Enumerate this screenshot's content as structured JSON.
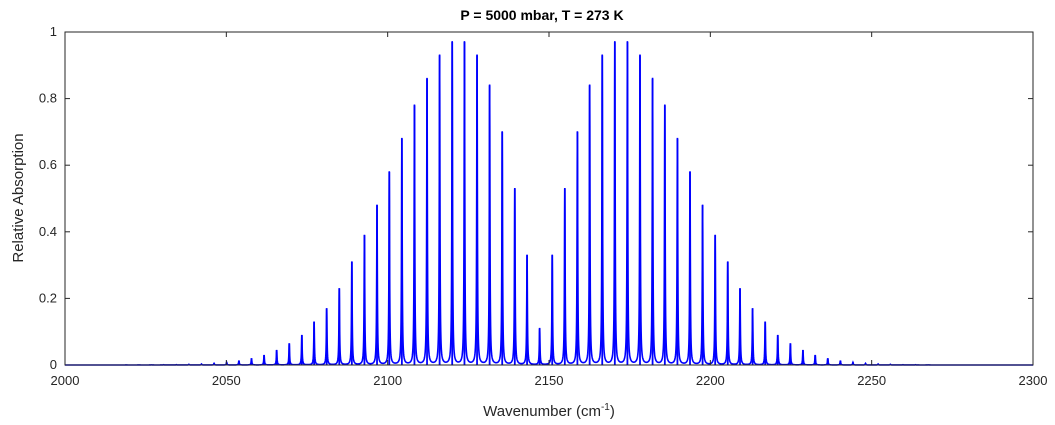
{
  "chart_data": {
    "type": "line",
    "title": "P = 5000 mbar, T = 273 K",
    "xlabel": {
      "base": "Wavenumber (cm",
      "sup": "-1",
      "close": ")"
    },
    "ylabel": "Relative Absorption",
    "xlim": [
      2000,
      2300
    ],
    "ylim": [
      0,
      1
    ],
    "x_ticks": [
      "2000",
      "2050",
      "2100",
      "2150",
      "2200",
      "2250",
      "2300"
    ],
    "y_ticks": [
      "0",
      "0.2",
      "0.4",
      "0.6",
      "0.8",
      "1"
    ],
    "grid": false,
    "series": [
      {
        "color": "#0000ff",
        "line_positions": [
          2147.1,
          2143.2,
          2139.4,
          2135.5,
          2131.6,
          2127.7,
          2123.8,
          2120.0,
          2116.1,
          2112.2,
          2108.3,
          2104.4,
          2100.5,
          2096.7,
          2092.8,
          2088.9,
          2085.0,
          2081.1,
          2077.2,
          2073.4,
          2069.5,
          2065.6,
          2061.7,
          2057.8,
          2053.9,
          2050.1,
          2046.2,
          2042.3,
          2038.4,
          2034.5,
          2030.6,
          2026.8,
          2022.9,
          2019.0,
          2151.0,
          2154.9,
          2158.8,
          2162.6,
          2166.5,
          2170.4,
          2174.3,
          2178.2,
          2182.1,
          2185.9,
          2189.8,
          2193.7,
          2197.6,
          2201.5,
          2205.4,
          2209.2,
          2213.1,
          2217.0,
          2220.9,
          2224.8,
          2228.7,
          2232.5,
          2236.4,
          2240.3,
          2244.2,
          2248.1,
          2252.0,
          2255.8,
          2259.7,
          2263.6,
          2267.5
        ],
        "peak_values": [
          0.11,
          0.33,
          0.53,
          0.7,
          0.84,
          0.93,
          0.97,
          0.97,
          0.93,
          0.86,
          0.78,
          0.68,
          0.58,
          0.48,
          0.39,
          0.31,
          0.23,
          0.17,
          0.13,
          0.09,
          0.065,
          0.045,
          0.03,
          0.02,
          0.013,
          0.008,
          0.005,
          0.003,
          0.002,
          0.001,
          0.0008,
          0.0005,
          0.0003,
          0.0002,
          0.33,
          0.53,
          0.7,
          0.84,
          0.93,
          0.97,
          0.97,
          0.93,
          0.86,
          0.78,
          0.68,
          0.58,
          0.48,
          0.39,
          0.31,
          0.23,
          0.17,
          0.13,
          0.09,
          0.065,
          0.045,
          0.03,
          0.02,
          0.013,
          0.008,
          0.005,
          0.003,
          0.002,
          0.001,
          0.0008,
          0.0005
        ]
      }
    ]
  }
}
